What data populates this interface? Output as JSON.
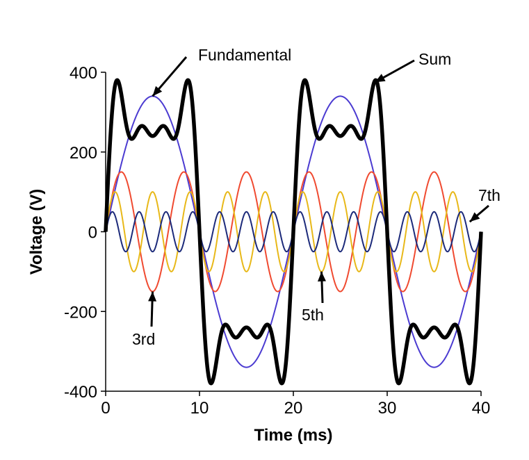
{
  "chart_data": {
    "type": "line",
    "title": "",
    "xlabel": "Time (ms)",
    "ylabel": "Voltage (V)",
    "xlim": [
      0,
      40
    ],
    "ylim": [
      -400,
      400
    ],
    "x_ticks": [
      "0",
      "10",
      "20",
      "30",
      "40"
    ],
    "y_ticks": [
      "400",
      "200",
      "0",
      "-200",
      "-400"
    ],
    "grid": false,
    "legend": "none",
    "period_ms": 20,
    "series": [
      {
        "name": "Fundamental",
        "harmonic": 1,
        "amplitude": 340,
        "color": "#4b3bd1",
        "style": "thin"
      },
      {
        "name": "3rd",
        "harmonic": 3,
        "amplitude": 150,
        "color": "#f04a30",
        "style": "thin"
      },
      {
        "name": "5th",
        "harmonic": 5,
        "amplitude": 100,
        "color": "#e8b818",
        "style": "thin"
      },
      {
        "name": "7th",
        "harmonic": 7,
        "amplitude": 50,
        "color": "#1c2a7a",
        "style": "thin"
      },
      {
        "name": "Sum",
        "harmonic": null,
        "amplitude": null,
        "color": "#000000",
        "style": "bold"
      }
    ],
    "annotations": [
      {
        "text": "Fundamental",
        "target_series": "Fundamental",
        "points_to": [
          5,
          340
        ]
      },
      {
        "text": "Sum",
        "target_series": "Sum",
        "points_to": [
          28.7,
          375
        ]
      },
      {
        "text": "7th",
        "target_series": "7th",
        "points_to": [
          38.8,
          25
        ]
      },
      {
        "text": "5th",
        "target_series": "5th",
        "points_to": [
          23,
          -100
        ]
      },
      {
        "text": "3rd",
        "target_series": "3rd",
        "points_to": [
          5,
          -150
        ]
      }
    ]
  }
}
